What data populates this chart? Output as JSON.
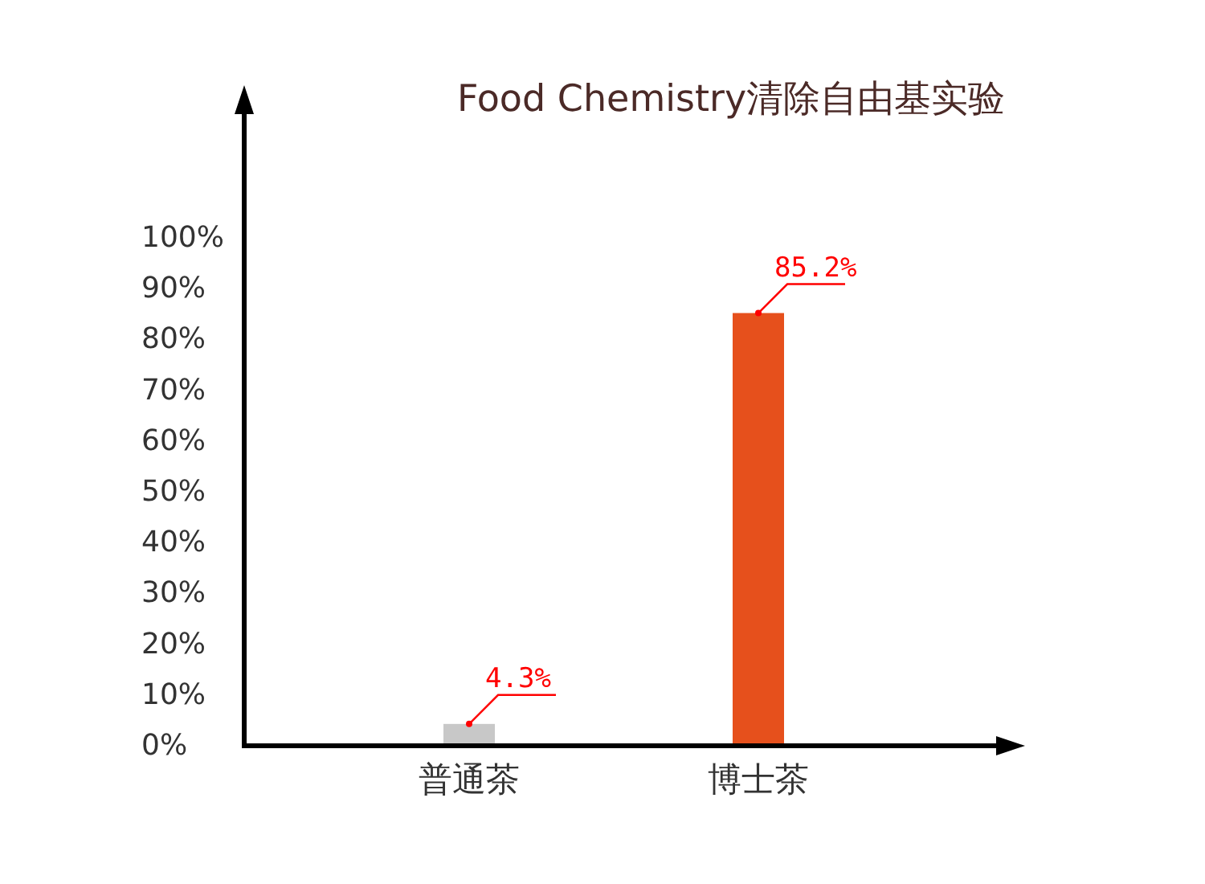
{
  "chart_data": {
    "type": "bar",
    "title": "Food Chemistry清除自由基实验",
    "categories": [
      "普通茶",
      "博士茶"
    ],
    "values": [
      4.3,
      85.2
    ],
    "colors": [
      "#c8c8c8",
      "#e6501c"
    ],
    "value_labels": [
      "4.3%",
      "85.2%"
    ],
    "ylim": [
      0,
      125
    ],
    "yticks": [
      {
        "value": 0,
        "label": "0%"
      },
      {
        "value": 10,
        "label": "10%"
      },
      {
        "value": 20,
        "label": "20%"
      },
      {
        "value": 30,
        "label": "30%"
      },
      {
        "value": 40,
        "label": "40%"
      },
      {
        "value": 50,
        "label": "50%"
      },
      {
        "value": 60,
        "label": "60%"
      },
      {
        "value": 70,
        "label": "70%"
      },
      {
        "value": 80,
        "label": "80%"
      },
      {
        "value": 90,
        "label": "90%"
      },
      {
        "value": 100,
        "label": "100%"
      }
    ]
  }
}
